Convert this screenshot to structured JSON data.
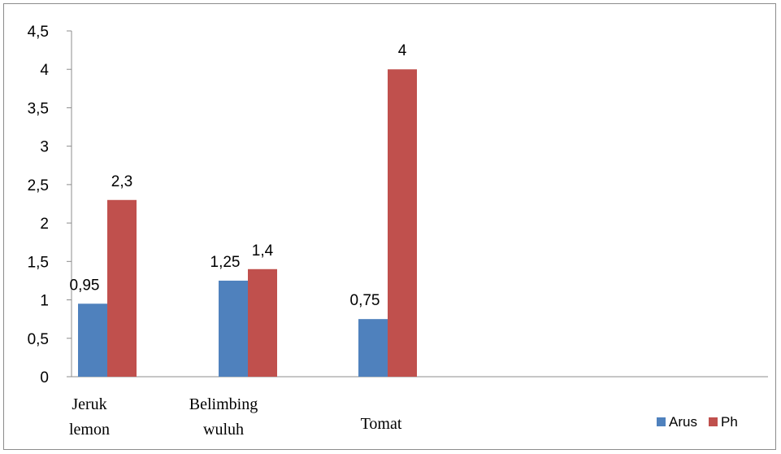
{
  "chart_data": {
    "type": "bar",
    "categories": [
      [
        "Jeruk",
        "lemon"
      ],
      [
        "Belimbing",
        "wuluh"
      ],
      [
        "Tomat"
      ]
    ],
    "series": [
      {
        "name": "Arus",
        "values": [
          0.95,
          1.25,
          0.75
        ],
        "labels": [
          "0,95",
          "1,25",
          "0,75"
        ],
        "color": "#4f81bd"
      },
      {
        "name": "Ph",
        "values": [
          2.3,
          1.4,
          4
        ],
        "labels": [
          "2,3",
          "1,4",
          "4"
        ],
        "color": "#c0504d"
      }
    ],
    "ylim": [
      0,
      4.5
    ],
    "yticks": [
      0,
      0.5,
      1,
      1.5,
      2,
      2.5,
      3,
      3.5,
      4,
      4.5
    ],
    "ytick_labels": [
      "0",
      "0,5",
      "1",
      "1,5",
      "2",
      "2,5",
      "3",
      "3,5",
      "4",
      "4,5"
    ],
    "grid": false,
    "legend": "bottom-right",
    "title": "",
    "xlabel": "",
    "ylabel": ""
  }
}
